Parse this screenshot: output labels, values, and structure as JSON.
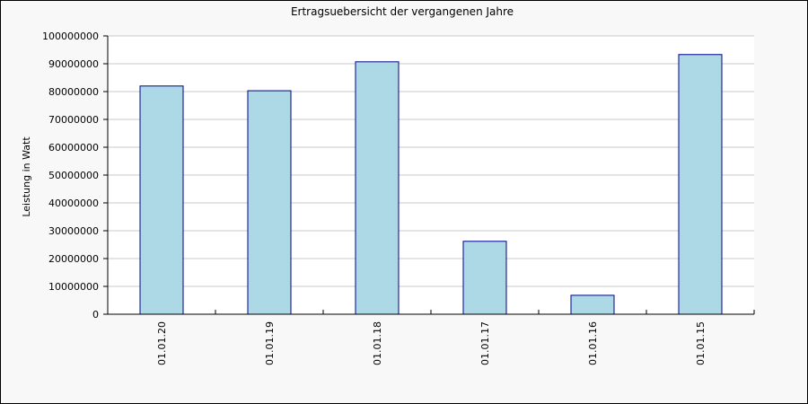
{
  "chart_data": {
    "type": "bar",
    "title": "Ertragsuebersicht der vergangenen Jahre",
    "ylabel": "Leistung in Watt",
    "xlabel": "",
    "categories": [
      "01.01.20",
      "01.01.19",
      "01.01.18",
      "01.01.17",
      "01.01.16",
      "01.01.15"
    ],
    "values": [
      82000000,
      80300000,
      90700000,
      26200000,
      6800000,
      93300000
    ],
    "ylim": [
      0,
      100000000
    ],
    "yticks": [
      0,
      10000000,
      20000000,
      30000000,
      40000000,
      50000000,
      60000000,
      70000000,
      80000000,
      90000000,
      100000000
    ],
    "ytick_labels": [
      "0",
      "10000000",
      "20000000",
      "30000000",
      "40000000",
      "50000000",
      "60000000",
      "70000000",
      "80000000",
      "90000000",
      "100000000"
    ],
    "grid": true,
    "legend": "none",
    "colors": {
      "bar_fill": "#add8e6",
      "bar_stroke": "#00008b",
      "grid": "#c8c8c8",
      "plot_bg": "#ffffff",
      "figure_bg": "#f8f8f8"
    }
  }
}
